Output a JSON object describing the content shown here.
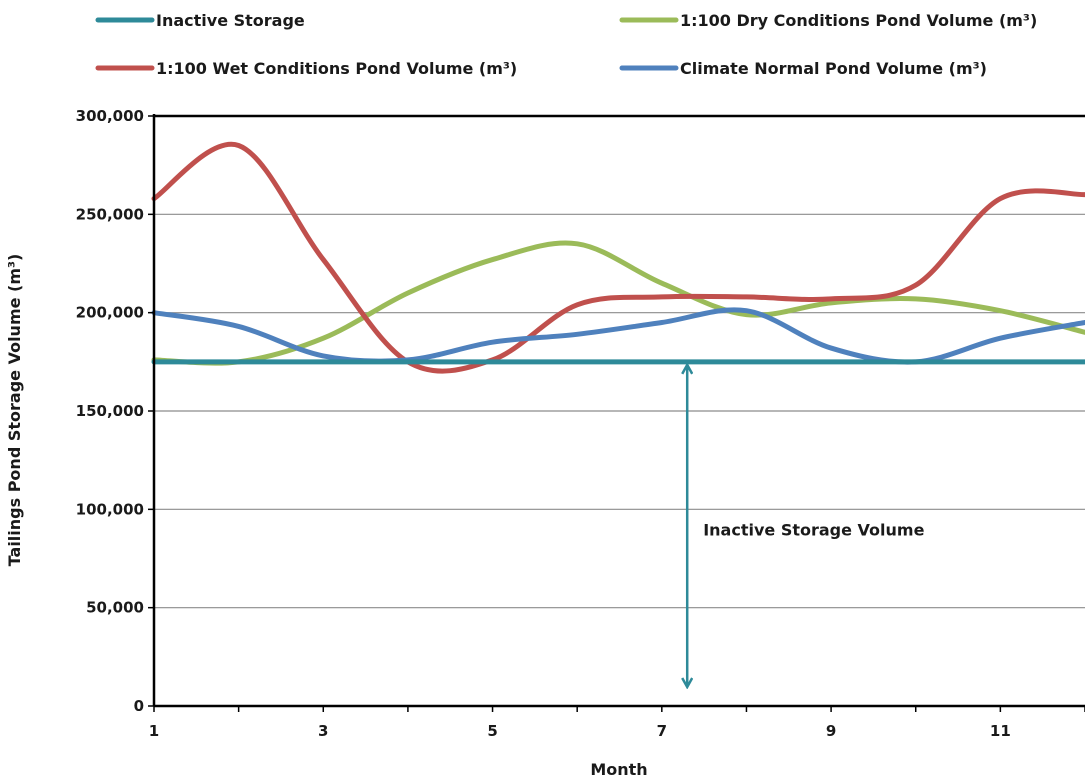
{
  "chart_data": {
    "type": "line",
    "xlabel": "Month",
    "ylabel": "Tailings Pond Storage Volume (m³)",
    "xlim": [
      1,
      12
    ],
    "ylim": [
      0,
      300000
    ],
    "x_ticks": [
      1,
      3,
      5,
      7,
      9,
      11
    ],
    "x_tick_labels": [
      "1",
      "3",
      "5",
      "7",
      "9",
      "11"
    ],
    "y_ticks": [
      0,
      50000,
      100000,
      150000,
      200000,
      250000,
      300000
    ],
    "y_tick_labels": [
      "0",
      "50,000",
      "100,000",
      "150,000",
      "200,000",
      "250,000",
      "300,000"
    ],
    "grid": "horizontal",
    "legend_position": "top",
    "series": [
      {
        "name": "Inactive Storage",
        "color": "#2e8a99",
        "x": [
          1,
          12
        ],
        "values": [
          175000,
          175000
        ]
      },
      {
        "name": "1:100 Dry Conditions Pond Volume (m³)",
        "color": "#9bbb59",
        "x": [
          1,
          2,
          3,
          4,
          5,
          6,
          7,
          8,
          9,
          10,
          11,
          12
        ],
        "values": [
          176000,
          175000,
          187000,
          210000,
          227000,
          235000,
          215000,
          199000,
          205000,
          207000,
          201000,
          190000
        ]
      },
      {
        "name": "1:100 Wet Conditions Pond Volume (m³)",
        "color": "#c0504d",
        "x": [
          1,
          2,
          3,
          4,
          5,
          6,
          7,
          8,
          9,
          10,
          11,
          12
        ],
        "values": [
          258000,
          285000,
          227000,
          175000,
          176000,
          204000,
          208000,
          208000,
          207000,
          214000,
          258000,
          260000
        ]
      },
      {
        "name": "Climate Normal Pond Volume (m³)",
        "color": "#4f81bd",
        "x": [
          1,
          2,
          3,
          4,
          5,
          6,
          7,
          8,
          9,
          10,
          11,
          12
        ],
        "values": [
          200000,
          193000,
          178000,
          176000,
          185000,
          189000,
          195000,
          201000,
          182000,
          175000,
          187000,
          195000
        ]
      }
    ],
    "annotations": [
      {
        "text": "Inactive Storage Volume",
        "arrow": "double-headed vertical",
        "x": 7.3,
        "from": 0,
        "to": 175000,
        "color": "#2e8a99"
      }
    ]
  }
}
